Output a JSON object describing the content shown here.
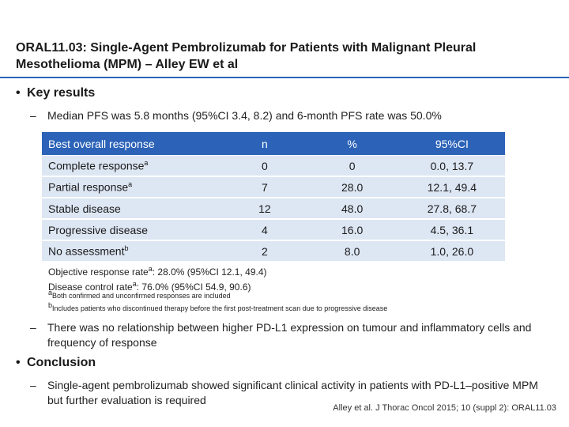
{
  "title": "ORAL11.03: Single-Agent Pembrolizumab for Patients with Malignant Pleural Mesothelioma (MPM) – Alley EW et al",
  "key_results": {
    "bullet": "•",
    "heading": "Key results",
    "dash": "–",
    "pfs_line": "Median PFS was 5.8 months (95%CI 3.4, 8.2) and 6-month PFS rate was 50.0%"
  },
  "table": {
    "headers": [
      "Best overall response",
      "n",
      "%",
      "95%CI"
    ],
    "rows": [
      {
        "label": "Complete response",
        "sup": "a",
        "n": "0",
        "pct": "0",
        "ci": "0.0, 13.7"
      },
      {
        "label": "Partial response",
        "sup": "a",
        "n": "7",
        "pct": "28.0",
        "ci": "12.1, 49.4"
      },
      {
        "label": "Stable disease",
        "sup": "",
        "n": "12",
        "pct": "48.0",
        "ci": "27.8, 68.7"
      },
      {
        "label": "Progressive disease",
        "sup": "",
        "n": "4",
        "pct": "16.0",
        "ci": "4.5, 36.1"
      },
      {
        "label": "No assessment",
        "sup": "b",
        "n": "2",
        "pct": "8.0",
        "ci": "1.0, 26.0"
      }
    ]
  },
  "notes": {
    "orr_pre": "Objective response rate",
    "orr_sup": "a",
    "orr_post": ": 28.0% (95%CI 12.1, 49.4)",
    "dcr_pre": "Disease control rate",
    "dcr_sup": "a",
    "dcr_post": ": 76.0% (95%CI 54.9, 90.6)",
    "fn_a_mark": "a",
    "fn_a": "Both confirmed and unconfirmed responses are included",
    "fn_b_mark": "b",
    "fn_b": "Includes patients who discontinued therapy before the first post-treatment scan due to progressive disease"
  },
  "pdl1_line": "There was no relationship between higher PD-L1 expression on tumour and inflammatory cells and frequency of response",
  "conclusion": {
    "bullet": "•",
    "heading": "Conclusion",
    "dash": "–",
    "text": "Single-agent pembrolizumab showed significant clinical activity in patients with PD-L1–positive MPM but further evaluation is required"
  },
  "citation": "Alley et al. J Thorac Oncol 2015; 10 (suppl 2): ORAL11.03"
}
